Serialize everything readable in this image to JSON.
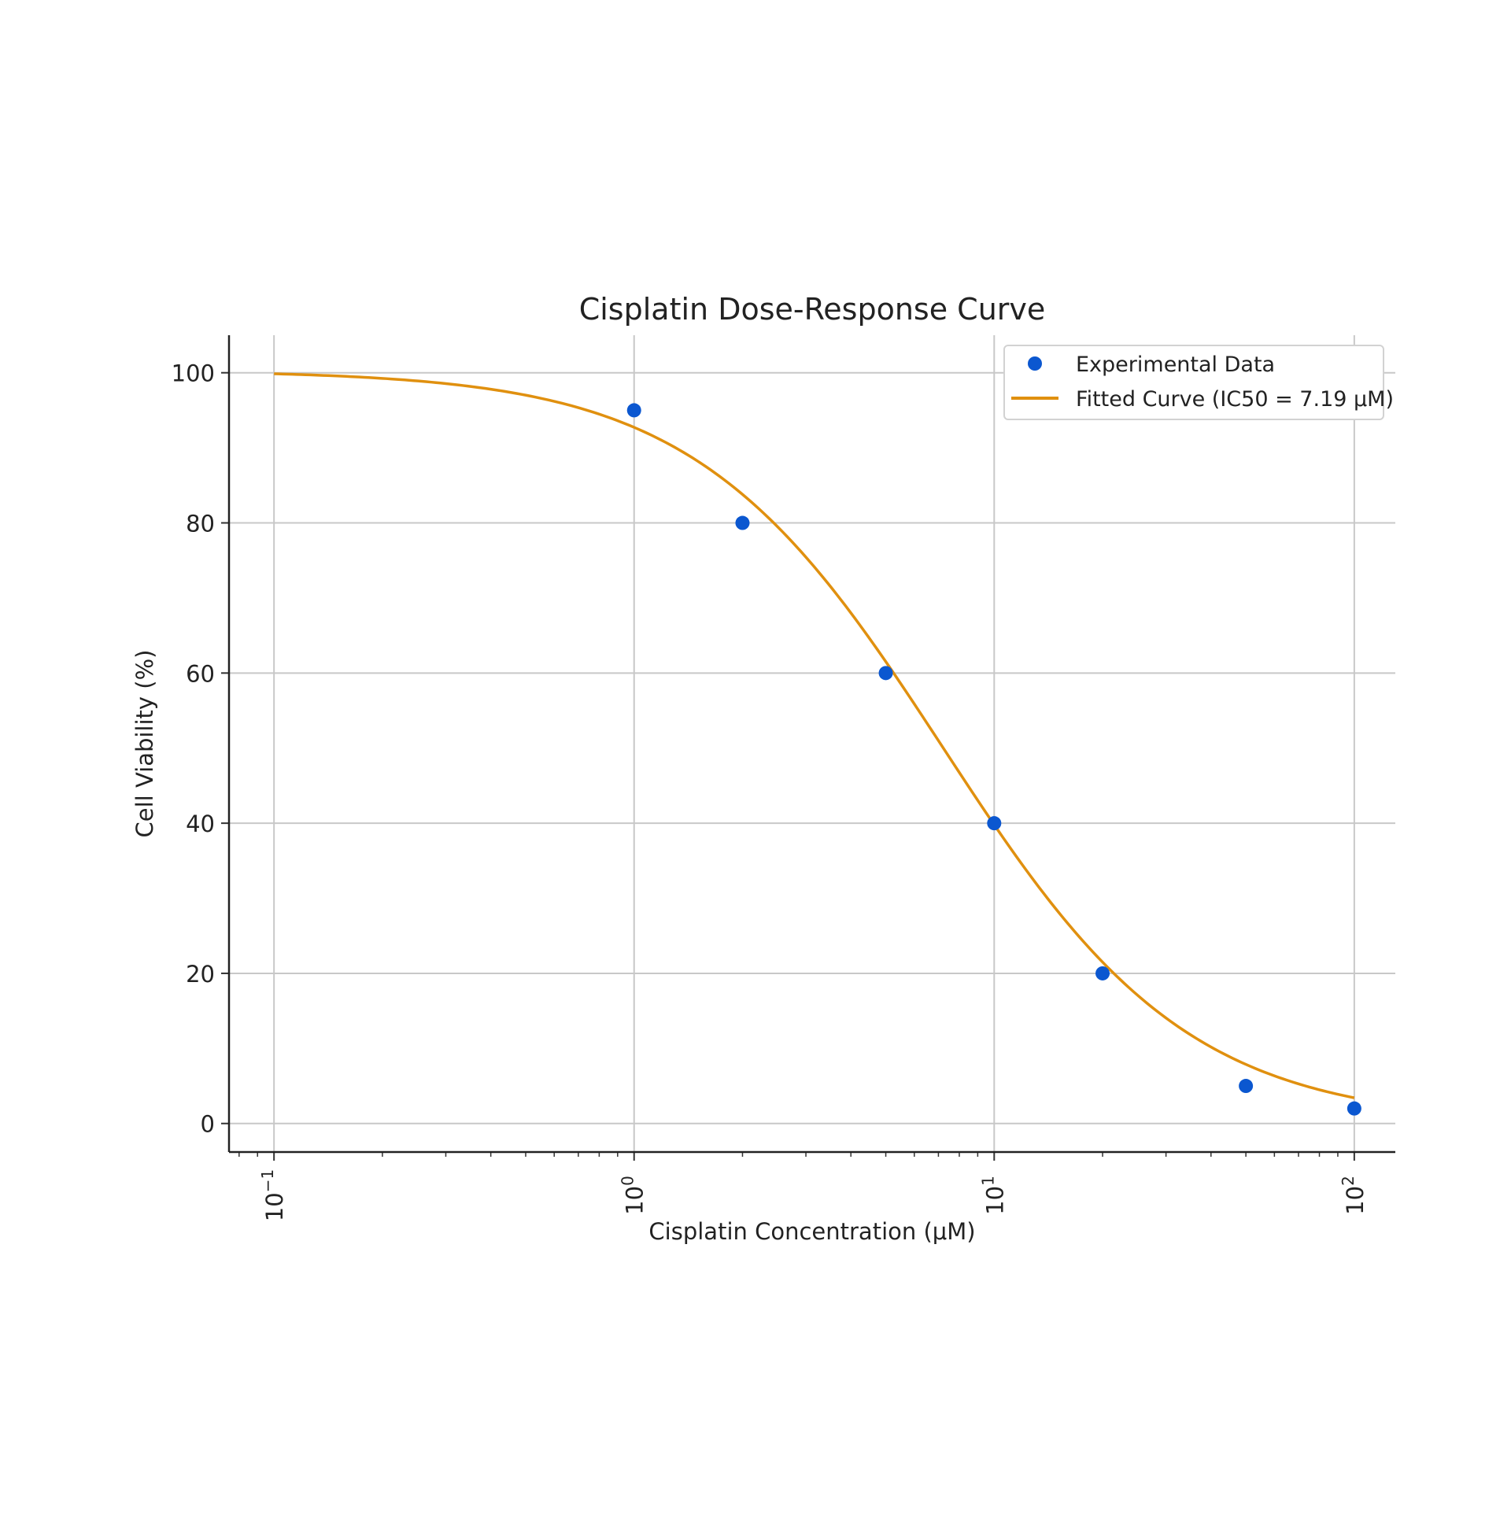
{
  "chart_data": {
    "type": "scatter",
    "title": "Cisplatin Dose-Response Curve",
    "xlabel": "Cisplatin Concentration (μM)",
    "ylabel": "Cell Viability (%)",
    "x_scale": "log",
    "xlim": [
      0.075,
      130
    ],
    "ylim": [
      -3.8,
      105
    ],
    "x_ticks": [
      {
        "value": 0.1,
        "base": "10",
        "exp": "−1"
      },
      {
        "value": 1,
        "base": "10",
        "exp": "0"
      },
      {
        "value": 10,
        "base": "10",
        "exp": "1"
      },
      {
        "value": 100,
        "base": "10",
        "exp": "2"
      }
    ],
    "y_ticks": [
      0,
      20,
      40,
      60,
      80,
      100
    ],
    "grid": true,
    "legend_position": "top-right",
    "series": [
      {
        "name": "Experimental Data",
        "kind": "points",
        "color": "#0b57d0",
        "x": [
          1,
          2,
          5,
          10,
          20,
          50,
          100
        ],
        "y": [
          95,
          80,
          60,
          40,
          20,
          5,
          2
        ]
      },
      {
        "name": "Fitted Curve (IC50 = 7.19 μM)",
        "kind": "curve",
        "color": "#e0900f",
        "model": {
          "top": 100.3,
          "bottom": 0,
          "ic50": 7.19,
          "hill": 1.27
        },
        "x_range": [
          0.1,
          100
        ]
      }
    ]
  }
}
